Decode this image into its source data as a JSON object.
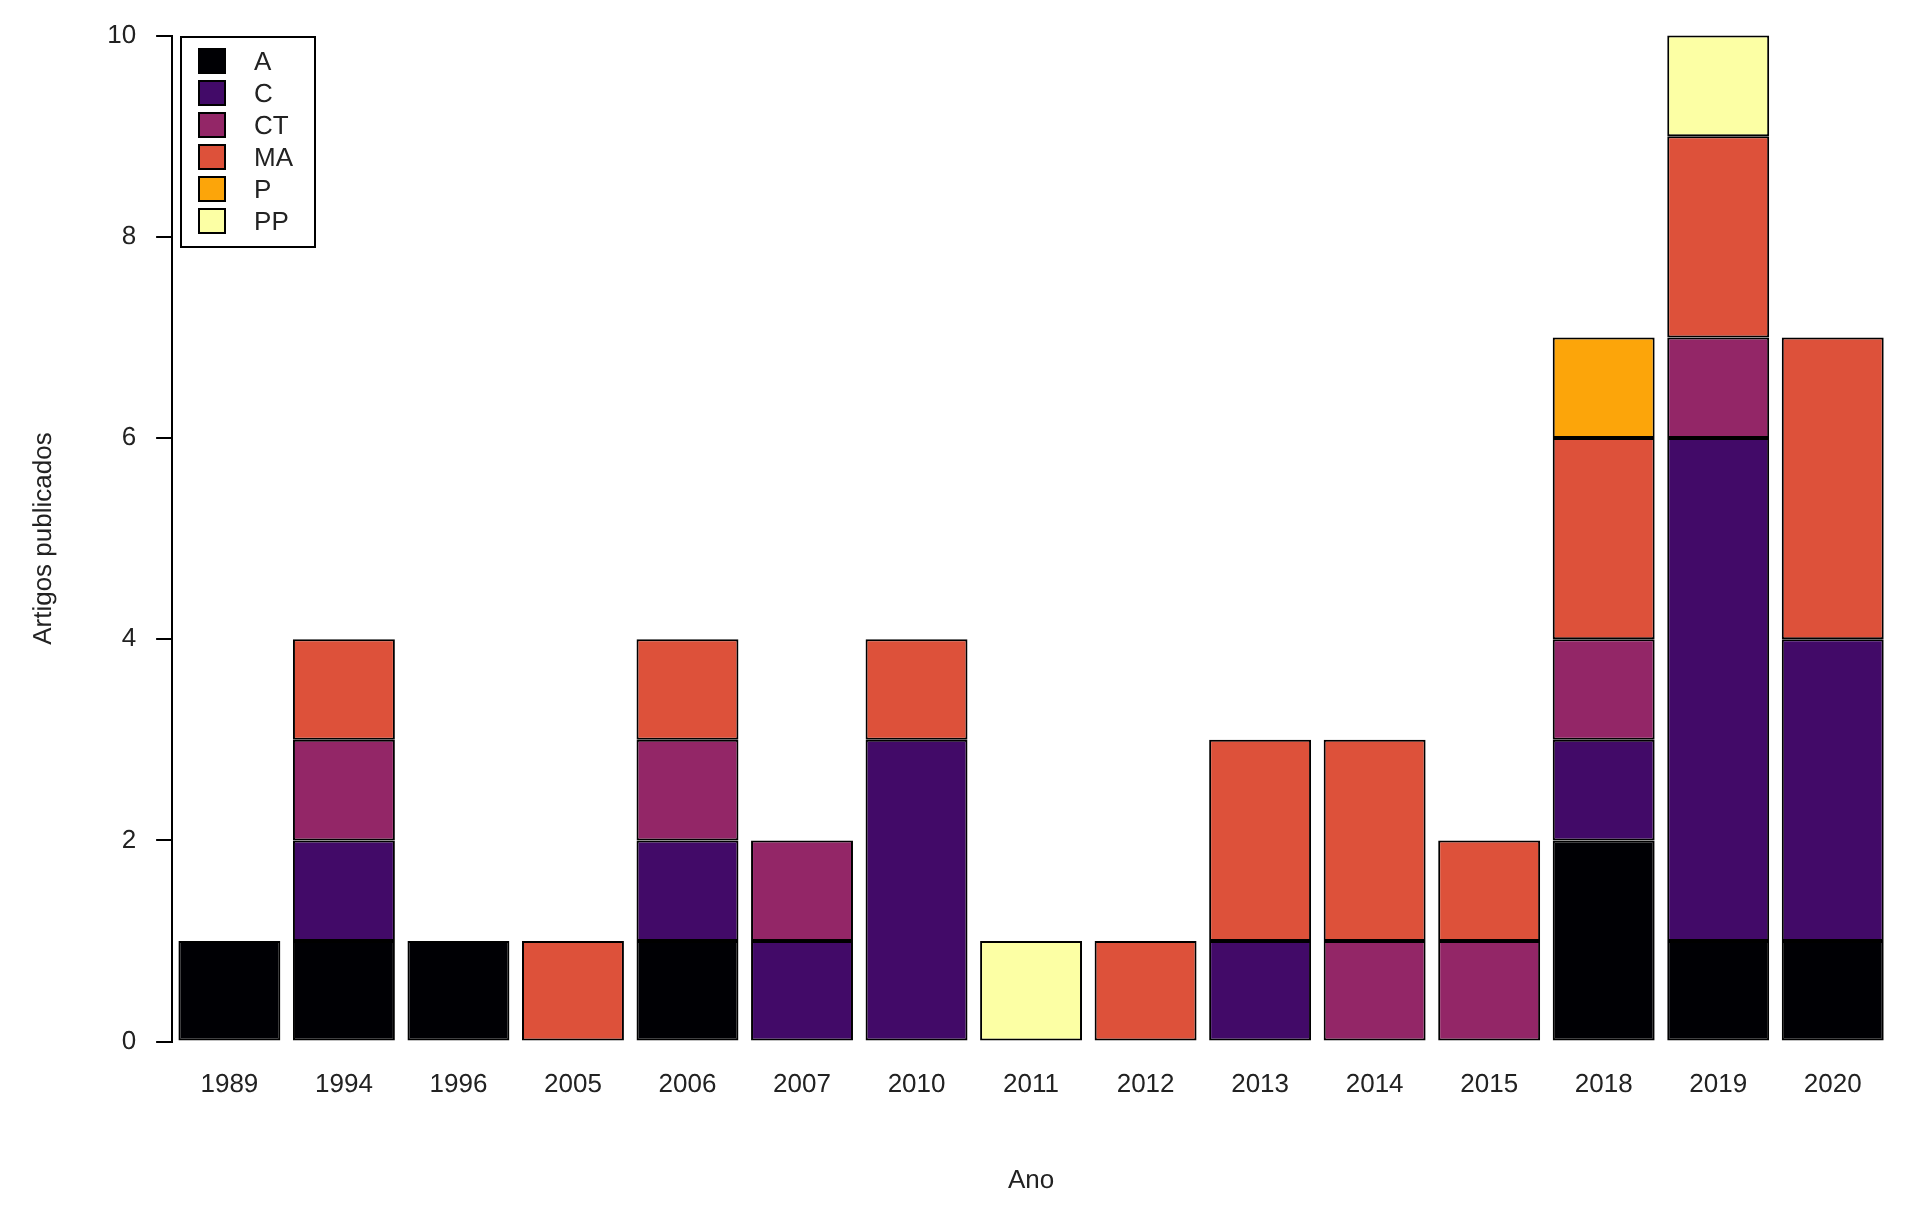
{
  "chart_data": {
    "type": "bar",
    "stacked": true,
    "xlabel": "Ano",
    "ylabel": "Artigos publicados",
    "categories": [
      "1989",
      "1994",
      "1996",
      "2005",
      "2006",
      "2007",
      "2010",
      "2011",
      "2012",
      "2013",
      "2014",
      "2015",
      "2018",
      "2019",
      "2020"
    ],
    "series": [
      {
        "name": "A",
        "color": "#000004",
        "values": [
          1,
          1,
          1,
          0,
          1,
          0,
          0,
          0,
          0,
          0,
          0,
          0,
          2,
          1,
          1
        ]
      },
      {
        "name": "C",
        "color": "#420a68",
        "values": [
          0,
          1,
          0,
          0,
          1,
          1,
          3,
          0,
          0,
          1,
          0,
          0,
          1,
          5,
          3
        ]
      },
      {
        "name": "CT",
        "color": "#932667",
        "values": [
          0,
          1,
          0,
          0,
          1,
          1,
          0,
          0,
          0,
          0,
          1,
          1,
          1,
          1,
          0
        ]
      },
      {
        "name": "MA",
        "color": "#dd513a",
        "values": [
          0,
          1,
          0,
          1,
          1,
          0,
          1,
          0,
          1,
          2,
          2,
          1,
          2,
          2,
          3
        ]
      },
      {
        "name": "P",
        "color": "#fca50a",
        "values": [
          0,
          0,
          0,
          0,
          0,
          0,
          0,
          0,
          0,
          0,
          0,
          0,
          1,
          0,
          0
        ]
      },
      {
        "name": "PP",
        "color": "#fcffa4",
        "values": [
          0,
          0,
          0,
          0,
          0,
          0,
          0,
          1,
          0,
          0,
          0,
          0,
          0,
          1,
          0
        ]
      }
    ],
    "ylim": [
      0,
      10
    ],
    "yticks": [
      0,
      2,
      4,
      6,
      8,
      10
    ],
    "grid": false,
    "legend": "top left"
  }
}
